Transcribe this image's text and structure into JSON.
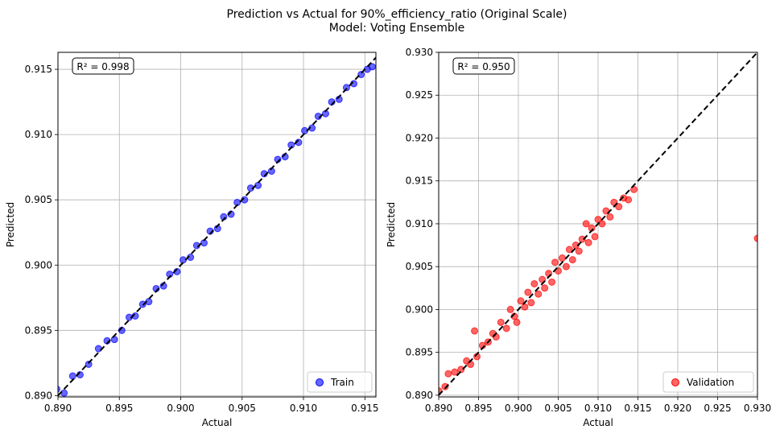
{
  "title": "Prediction vs Actual for 90%_efficiency_ratio (Original Scale)",
  "subtitle": "Model: Voting Ensemble",
  "chart_data": [
    {
      "type": "scatter",
      "name": "train",
      "xlabel": "Actual",
      "ylabel": "Predicted",
      "xlim": [
        0.89,
        0.9159
      ],
      "ylim": [
        0.8899,
        0.9163
      ],
      "xticks": [
        "0.890",
        "0.895",
        "0.900",
        "0.905",
        "0.910",
        "0.915"
      ],
      "yticks": [
        "0.890",
        "0.895",
        "0.900",
        "0.905",
        "0.910",
        "0.915"
      ],
      "xtick_values": [
        0.89,
        0.895,
        0.9,
        0.905,
        0.91,
        0.915
      ],
      "ytick_values": [
        0.89,
        0.895,
        0.9,
        0.905,
        0.91,
        0.915
      ],
      "grid": true,
      "annotation": "R² = 0.998",
      "legend": {
        "label": "Train",
        "placement": "bottom-right"
      },
      "color": "#0000ff",
      "diagonal": [
        0.89,
        0.93
      ],
      "x": [
        0.8899,
        0.8905,
        0.8912,
        0.8918,
        0.8925,
        0.8933,
        0.894,
        0.8946,
        0.8952,
        0.8958,
        0.8963,
        0.8969,
        0.8974,
        0.898,
        0.8986,
        0.8991,
        0.8997,
        0.9002,
        0.9008,
        0.9013,
        0.9019,
        0.9024,
        0.903,
        0.9035,
        0.9041,
        0.9046,
        0.9052,
        0.9057,
        0.9063,
        0.9068,
        0.9074,
        0.9079,
        0.9085,
        0.909,
        0.9096,
        0.9101,
        0.9107,
        0.9112,
        0.9118,
        0.9123,
        0.9129,
        0.9135,
        0.9141,
        0.9147,
        0.9152,
        0.9156
      ],
      "y": [
        0.8905,
        0.8902,
        0.8915,
        0.8916,
        0.8924,
        0.8936,
        0.8942,
        0.8943,
        0.895,
        0.896,
        0.8961,
        0.897,
        0.8972,
        0.8982,
        0.8984,
        0.8993,
        0.8995,
        0.9004,
        0.9006,
        0.9015,
        0.9017,
        0.9026,
        0.9028,
        0.9037,
        0.9039,
        0.9048,
        0.905,
        0.9059,
        0.9061,
        0.907,
        0.9072,
        0.9081,
        0.9083,
        0.9092,
        0.9094,
        0.9103,
        0.9105,
        0.9114,
        0.9116,
        0.9125,
        0.9127,
        0.9136,
        0.9139,
        0.9146,
        0.915,
        0.9152
      ]
    },
    {
      "type": "scatter",
      "name": "validation",
      "xlabel": "Actual",
      "ylabel": "Predicted",
      "xlim": [
        0.89,
        0.93
      ],
      "ylim": [
        0.8898,
        0.93
      ],
      "xticks": [
        "0.890",
        "0.895",
        "0.900",
        "0.905",
        "0.910",
        "0.915",
        "0.920",
        "0.925",
        "0.930"
      ],
      "yticks": [
        "0.890",
        "0.895",
        "0.900",
        "0.905",
        "0.910",
        "0.915",
        "0.920",
        "0.925",
        "0.930"
      ],
      "xtick_values": [
        0.89,
        0.895,
        0.9,
        0.905,
        0.91,
        0.915,
        0.92,
        0.925,
        0.93
      ],
      "ytick_values": [
        0.89,
        0.895,
        0.9,
        0.905,
        0.91,
        0.915,
        0.92,
        0.925,
        0.93
      ],
      "grid": true,
      "annotation": "R² = 0.950",
      "legend": {
        "label": "Validation",
        "placement": "bottom-right"
      },
      "color": "#ff0000",
      "diagonal": [
        0.89,
        0.93
      ],
      "x": [
        0.89,
        0.8908,
        0.8912,
        0.892,
        0.8928,
        0.8935,
        0.894,
        0.8945,
        0.8948,
        0.8955,
        0.8962,
        0.8968,
        0.8972,
        0.8978,
        0.8985,
        0.899,
        0.8995,
        0.8998,
        0.9003,
        0.9008,
        0.9012,
        0.9016,
        0.902,
        0.9025,
        0.903,
        0.9033,
        0.9038,
        0.9042,
        0.9046,
        0.905,
        0.9055,
        0.906,
        0.9064,
        0.9068,
        0.9072,
        0.9076,
        0.908,
        0.9085,
        0.9088,
        0.9092,
        0.9096,
        0.91,
        0.9105,
        0.911,
        0.9115,
        0.912,
        0.9126,
        0.9132,
        0.9138,
        0.9145,
        0.93
      ],
      "y": [
        0.8905,
        0.891,
        0.8925,
        0.8927,
        0.893,
        0.894,
        0.8936,
        0.8975,
        0.8945,
        0.8958,
        0.8962,
        0.8972,
        0.8968,
        0.8985,
        0.8978,
        0.9,
        0.8992,
        0.8985,
        0.901,
        0.9003,
        0.902,
        0.9008,
        0.903,
        0.9018,
        0.9035,
        0.9025,
        0.9042,
        0.9032,
        0.9055,
        0.9045,
        0.906,
        0.905,
        0.907,
        0.9058,
        0.9075,
        0.9068,
        0.9082,
        0.91,
        0.9078,
        0.9095,
        0.9085,
        0.9105,
        0.91,
        0.9115,
        0.9108,
        0.9125,
        0.912,
        0.913,
        0.9128,
        0.914,
        0.9083
      ]
    }
  ]
}
